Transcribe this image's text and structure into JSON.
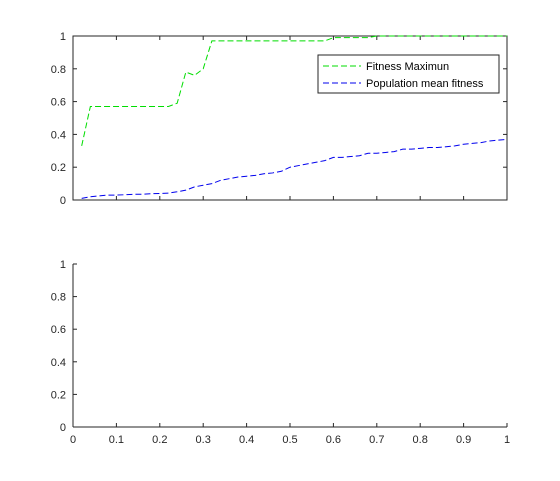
{
  "chart_data": [
    {
      "type": "line",
      "title": "",
      "xlabel": "",
      "ylabel": "",
      "xlim": [
        0,
        1
      ],
      "ylim": [
        0,
        1
      ],
      "yticks": [
        0,
        0.2,
        0.4,
        0.6,
        0.8,
        1
      ],
      "ytick_labels": [
        "0",
        "0.2",
        "0.4",
        "0.6",
        "0.8",
        "1"
      ],
      "xtick_labels_visible": false,
      "grid": false,
      "box": true,
      "legend": {
        "placement": "top-right",
        "entries": [
          "Fitness Maximun",
          "Population mean fitness"
        ]
      },
      "series": [
        {
          "name": "Fitness Maximun",
          "color": "#00dd00",
          "line_style": "dashed",
          "x": [
            0.02,
            0.04,
            0.06,
            0.08,
            0.1,
            0.12,
            0.14,
            0.16,
            0.18,
            0.2,
            0.22,
            0.24,
            0.26,
            0.28,
            0.3,
            0.32,
            0.34,
            0.36,
            0.38,
            0.4,
            0.42,
            0.44,
            0.46,
            0.48,
            0.5,
            0.52,
            0.54,
            0.56,
            0.58,
            0.6,
            0.62,
            0.64,
            0.66,
            0.68,
            0.7,
            0.72,
            0.74,
            0.76,
            0.78,
            0.8,
            0.82,
            0.84,
            0.86,
            0.88,
            0.9,
            0.92,
            0.94,
            0.96,
            0.98,
            1.0
          ],
          "y": [
            0.33,
            0.57,
            0.57,
            0.57,
            0.57,
            0.57,
            0.57,
            0.57,
            0.57,
            0.57,
            0.57,
            0.59,
            0.78,
            0.76,
            0.8,
            0.97,
            0.97,
            0.97,
            0.97,
            0.97,
            0.97,
            0.97,
            0.97,
            0.97,
            0.97,
            0.97,
            0.97,
            0.97,
            0.97,
            0.99,
            0.99,
            0.99,
            0.99,
            0.99,
            1.0,
            1.0,
            1.0,
            1.0,
            1.0,
            1.0,
            1.0,
            1.0,
            1.0,
            1.0,
            1.0,
            1.0,
            1.0,
            1.0,
            1.0,
            1.0
          ]
        },
        {
          "name": "Population mean fitness",
          "color": "#0000ee",
          "line_style": "dashed",
          "x": [
            0.02,
            0.04,
            0.06,
            0.08,
            0.1,
            0.12,
            0.14,
            0.16,
            0.18,
            0.2,
            0.22,
            0.24,
            0.26,
            0.28,
            0.3,
            0.32,
            0.34,
            0.36,
            0.38,
            0.4,
            0.42,
            0.44,
            0.46,
            0.48,
            0.5,
            0.52,
            0.54,
            0.56,
            0.58,
            0.6,
            0.62,
            0.64,
            0.66,
            0.68,
            0.7,
            0.72,
            0.74,
            0.76,
            0.78,
            0.8,
            0.82,
            0.84,
            0.86,
            0.88,
            0.9,
            0.92,
            0.94,
            0.96,
            0.98,
            1.0
          ],
          "y": [
            0.01,
            0.02,
            0.025,
            0.03,
            0.03,
            0.032,
            0.035,
            0.035,
            0.038,
            0.04,
            0.042,
            0.05,
            0.06,
            0.08,
            0.09,
            0.1,
            0.12,
            0.13,
            0.14,
            0.145,
            0.15,
            0.16,
            0.165,
            0.175,
            0.2,
            0.21,
            0.22,
            0.23,
            0.24,
            0.26,
            0.26,
            0.265,
            0.27,
            0.285,
            0.285,
            0.29,
            0.295,
            0.31,
            0.31,
            0.315,
            0.32,
            0.32,
            0.325,
            0.33,
            0.34,
            0.345,
            0.35,
            0.36,
            0.365,
            0.37
          ]
        }
      ]
    },
    {
      "type": "line",
      "title": "",
      "xlabel": "",
      "ylabel": "",
      "xlim": [
        0,
        1
      ],
      "ylim": [
        0,
        1
      ],
      "xticks": [
        0,
        0.1,
        0.2,
        0.3,
        0.4,
        0.5,
        0.6,
        0.7,
        0.8,
        0.9,
        1
      ],
      "xtick_labels": [
        "0",
        "0.1",
        "0.2",
        "0.3",
        "0.4",
        "0.5",
        "0.6",
        "0.7",
        "0.8",
        "0.9",
        "1"
      ],
      "yticks": [
        0,
        0.2,
        0.4,
        0.6,
        0.8,
        1
      ],
      "ytick_labels": [
        "0",
        "0.2",
        "0.4",
        "0.6",
        "0.8",
        "1"
      ],
      "grid": false,
      "box": false,
      "series": []
    }
  ]
}
